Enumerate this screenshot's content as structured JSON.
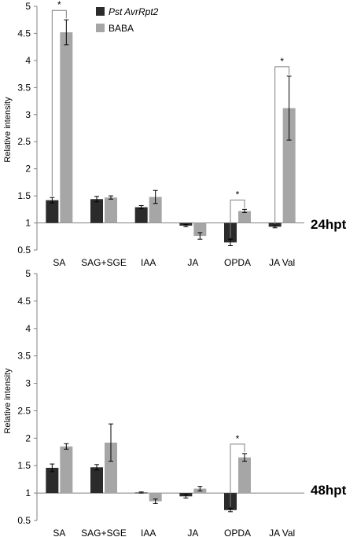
{
  "legend": {
    "series1": "Pst AvrRpt2",
    "series2": "BABA",
    "series1_color": "#2b2b2b",
    "series2_color": "#a6a6a6"
  },
  "chart_data": [
    {
      "type": "bar",
      "panel_label": "24hpt",
      "ylabel": "Relative intensity",
      "ylim": [
        0.5,
        5
      ],
      "yticks": [
        "0.5",
        "1",
        "1.5",
        "2",
        "2.5",
        "3",
        "3.5",
        "4",
        "4.5",
        "5"
      ],
      "baseline": 1,
      "grid": false,
      "legend_position": "top-left",
      "categories": [
        "SA",
        "SAG+SGE",
        "IAA",
        "JA",
        "OPDA",
        "JA Val"
      ],
      "series": [
        {
          "name": "Pst AvrRpt2",
          "values": [
            1.42,
            1.44,
            1.29,
            0.95,
            0.64,
            0.93
          ],
          "errors": [
            0.05,
            0.05,
            0.03,
            0.02,
            0.06,
            0.02
          ]
        },
        {
          "name": "BABA",
          "values": [
            4.52,
            1.47,
            1.48,
            0.76,
            1.22,
            3.12
          ],
          "errors": [
            0.23,
            0.03,
            0.12,
            0.06,
            0.03,
            0.59
          ]
        }
      ],
      "significance": [
        {
          "category": "SA",
          "label": "*"
        },
        {
          "category": "OPDA",
          "label": "*"
        },
        {
          "category": "JA Val",
          "label": "*"
        }
      ]
    },
    {
      "type": "bar",
      "panel_label": "48hpt",
      "ylabel": "Relative intensity",
      "ylim": [
        0.5,
        5
      ],
      "yticks": [
        "0.5",
        "1",
        "1.5",
        "2",
        "2.5",
        "3",
        "3.5",
        "4",
        "4.5",
        "5"
      ],
      "baseline": 1,
      "grid": false,
      "categories": [
        "SA",
        "SAG+SGE",
        "IAA",
        "JA",
        "OPDA",
        "JA Val"
      ],
      "series": [
        {
          "name": "Pst AvrRpt2",
          "values": [
            1.46,
            1.47,
            1.01,
            0.94,
            0.69,
            null
          ],
          "errors": [
            0.07,
            0.05,
            0.01,
            0.03,
            0.03,
            null
          ]
        },
        {
          "name": "BABA",
          "values": [
            1.85,
            1.92,
            0.85,
            1.08,
            1.65,
            null
          ],
          "errors": [
            0.05,
            0.34,
            0.04,
            0.04,
            0.07,
            null
          ]
        }
      ],
      "significance": [
        {
          "category": "OPDA",
          "label": "*"
        }
      ]
    }
  ]
}
